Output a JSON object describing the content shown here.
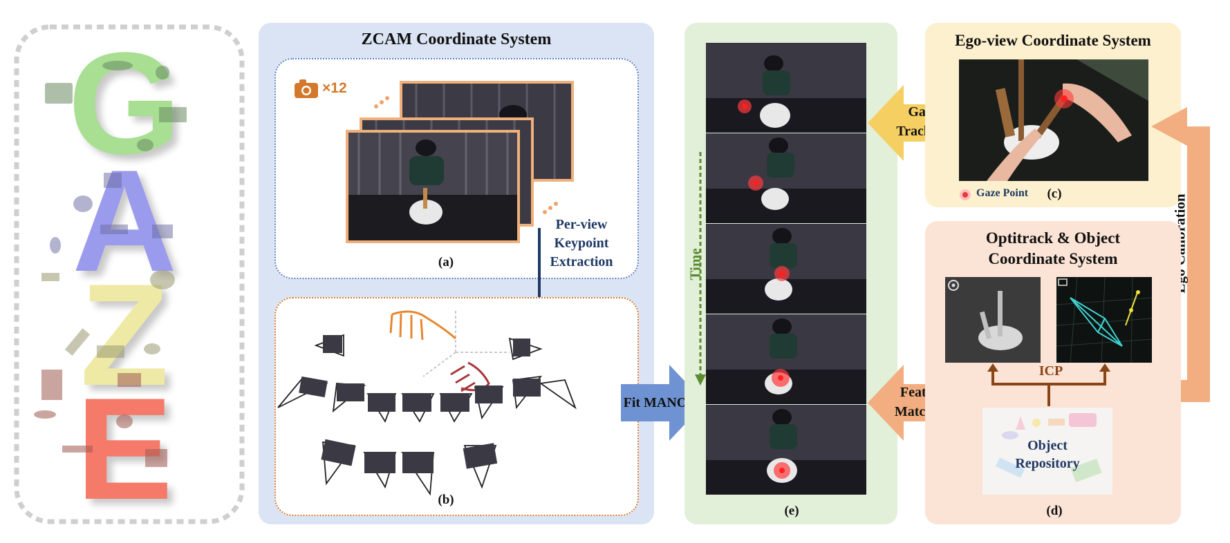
{
  "logo": {
    "letters": [
      "G",
      "A",
      "Z",
      "E"
    ]
  },
  "zcam": {
    "title": "ZCAM Coordinate System",
    "camera_count": "×12",
    "keypoint_label": [
      "Per-view",
      "Keypoint",
      "Extraction"
    ],
    "label_a": "(a)",
    "label_b": "(b)"
  },
  "fit_mano": "Fit MANO",
  "sequence": {
    "time_label": "Time",
    "label_e": "(e)"
  },
  "gaze_tracking": [
    "Gaze",
    "Tracking"
  ],
  "feature_matching": [
    "Feature",
    "Matching"
  ],
  "ego": {
    "title": "Ego-view Coordinate System",
    "legend": "Gaze Point",
    "label_c": "(c)"
  },
  "ego_calibration": "Ego Calibration",
  "optitrack": {
    "title": [
      "Optitrack & Object",
      "Coordinate System"
    ],
    "icp": "ICP",
    "repository": [
      "Object",
      "Repository"
    ],
    "label_d": "(d)"
  },
  "colors": {
    "zcam_panel": "#dbe4f4",
    "sequence_panel": "#e2efd9",
    "ego_panel": "#fdf0cf",
    "optitrack_panel": "#fbe3d5",
    "camera_orange": "#d4782b",
    "arrow_blue": "#6f93d2",
    "arrow_yellow": "#f6cf63",
    "arrow_orange": "#f2ae80",
    "dark_navy": "#1f3864",
    "time_green": "#5b8c2f",
    "icp_brown": "#8a4516"
  }
}
